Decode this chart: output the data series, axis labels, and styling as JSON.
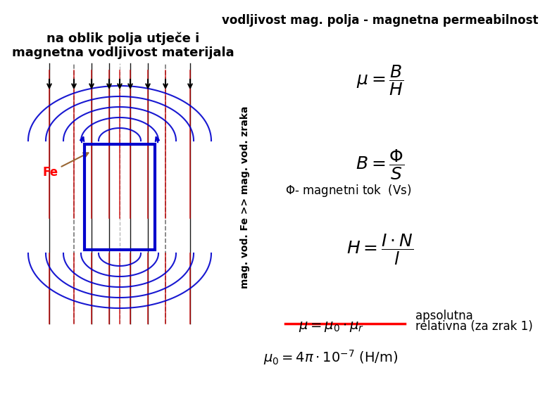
{
  "title_left": "na oblik polja utječe i\nmagnetna vodljivost materijala",
  "title_right": "vodljivost mag. polja - magnetna permeabilnost",
  "formula1": "$\\mu = \\dfrac{B}{H}$",
  "formula2": "$B = \\dfrac{\\Phi}{S}$",
  "formula3": "$\\Phi$- magnetni tok  (Vs)",
  "formula4": "$H = \\dfrac{I \\cdot N}{l}$",
  "formula5": "apsolutna",
  "formula6": "$\\mu = \\mu_0 \\cdot \\mu_r$",
  "formula7": "relativna (za zrak 1)",
  "formula8": "$\\mu_0 = 4\\pi \\cdot 10^{-7}$ (H/m)",
  "fe_label": "Fe",
  "side_text": "mag. vod. Fe >> mag. vod. zraka",
  "bg_color": "#ffffff",
  "line_color_red": "#cc0000",
  "line_color_blue": "#0000cc",
  "box_color": "#0000cc",
  "arrow_color": "#cc0000",
  "dashed_color": "#888888",
  "fe_arrow_color": "#996633",
  "text_color": "#000000"
}
